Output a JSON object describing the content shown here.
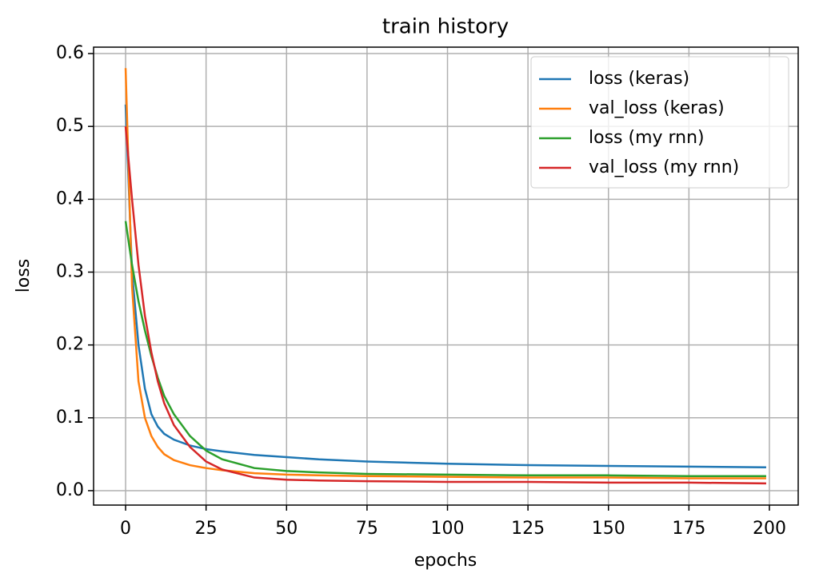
{
  "chart_data": {
    "type": "line",
    "title": "train history",
    "x_label": "epochs",
    "y_label": "loss",
    "x": [
      0,
      2,
      4,
      6,
      8,
      10,
      12,
      15,
      20,
      25,
      30,
      40,
      50,
      60,
      75,
      100,
      125,
      150,
      175,
      199
    ],
    "series": [
      {
        "name": "loss (keras)",
        "color": "#1f77b4",
        "values": [
          0.53,
          0.3,
          0.2,
          0.14,
          0.105,
          0.088,
          0.078,
          0.07,
          0.062,
          0.057,
          0.054,
          0.049,
          0.046,
          0.043,
          0.04,
          0.037,
          0.035,
          0.034,
          0.033,
          0.032
        ]
      },
      {
        "name": "val_loss (keras)",
        "color": "#ff7f0e",
        "values": [
          0.58,
          0.28,
          0.15,
          0.1,
          0.075,
          0.06,
          0.05,
          0.042,
          0.035,
          0.031,
          0.028,
          0.024,
          0.022,
          0.021,
          0.02,
          0.019,
          0.018,
          0.018,
          0.017,
          0.017
        ]
      },
      {
        "name": "loss (my rnn)",
        "color": "#2ca02c",
        "values": [
          0.37,
          0.31,
          0.26,
          0.22,
          0.185,
          0.155,
          0.13,
          0.105,
          0.075,
          0.055,
          0.043,
          0.031,
          0.027,
          0.025,
          0.023,
          0.022,
          0.021,
          0.021,
          0.02,
          0.02
        ]
      },
      {
        "name": "val_loss (my rnn)",
        "color": "#d62728",
        "values": [
          0.5,
          0.4,
          0.31,
          0.24,
          0.19,
          0.15,
          0.12,
          0.09,
          0.06,
          0.04,
          0.029,
          0.018,
          0.015,
          0.014,
          0.013,
          0.012,
          0.012,
          0.011,
          0.011,
          0.01
        ]
      }
    ],
    "xlim": [
      -9.95,
      208.95
    ],
    "ylim": [
      -0.0198,
      0.6088
    ],
    "xticks": [
      0,
      25,
      50,
      75,
      100,
      125,
      150,
      175,
      200
    ],
    "yticks": [
      {
        "value": 0,
        "label": "0.0"
      },
      0.1,
      0.2,
      0.3,
      0.4,
      0.5,
      0.6
    ],
    "grid": true,
    "legend": "upper-right"
  }
}
